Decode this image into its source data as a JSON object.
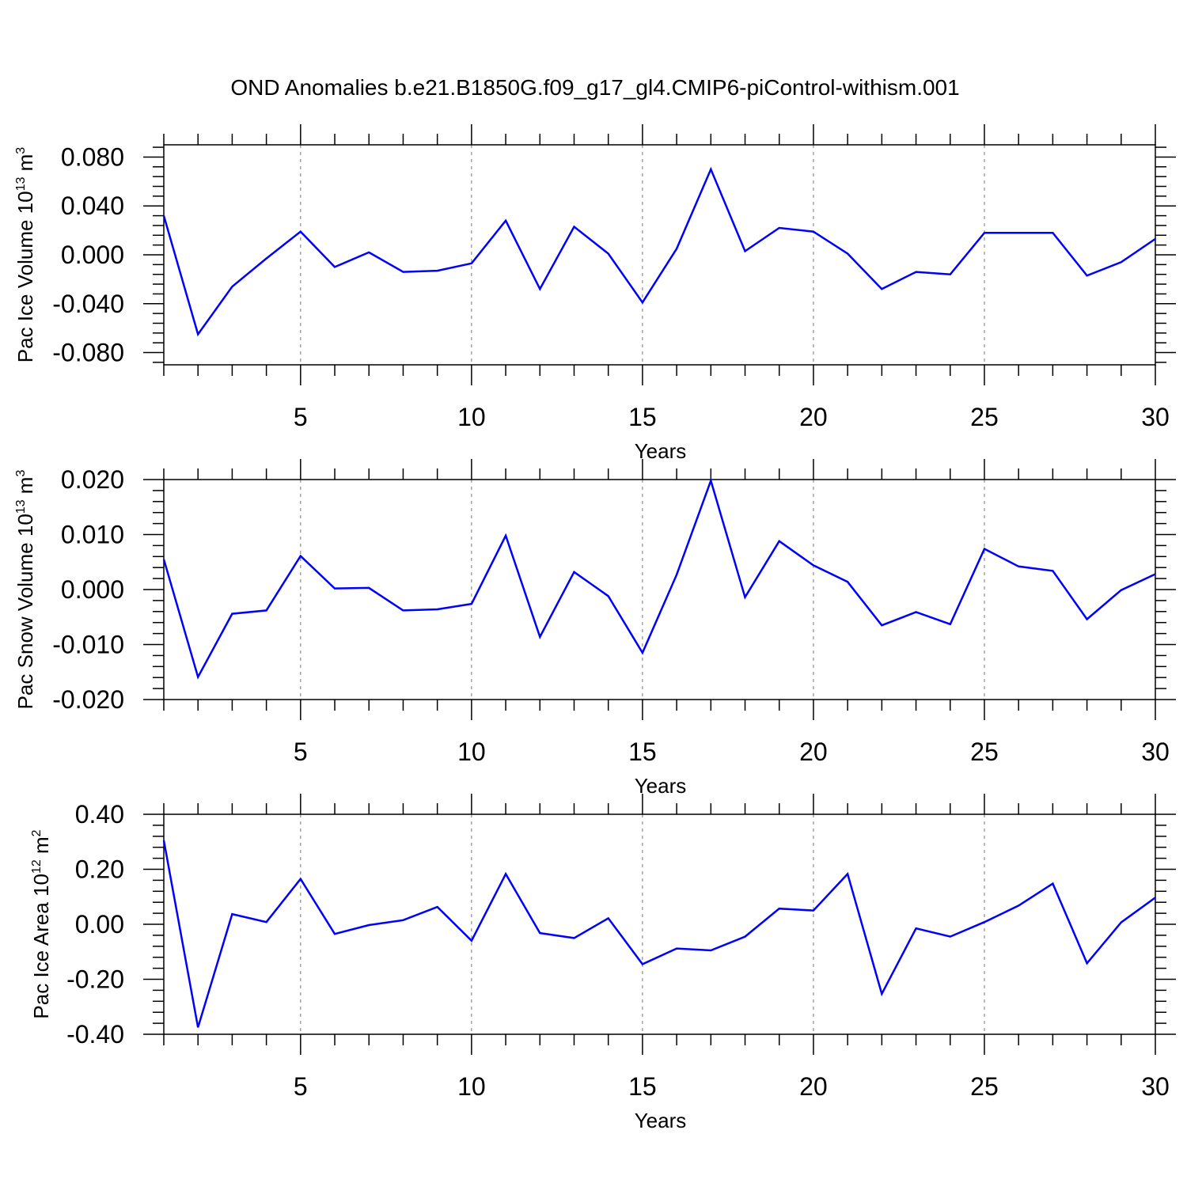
{
  "title": "OND Anomalies b.e21.B1850G.f09_g17_gl4.CMIP6-piControl-withism.001",
  "colors": {
    "line": "#0000ff",
    "axis": "#000000",
    "grid": "#777777"
  },
  "chart_data": [
    {
      "type": "line",
      "ylabel": {
        "main": "Pac Ice Volume 10",
        "exp": "13",
        "unit": " m",
        "unit_exp": "3"
      },
      "xlabel": "Years",
      "xlim": [
        1,
        30
      ],
      "ylim": [
        -0.09,
        0.09
      ],
      "xticks": [
        5,
        10,
        15,
        20,
        25,
        30
      ],
      "yticks": [
        -0.08,
        -0.04,
        0.0,
        0.04,
        0.08
      ],
      "ytick_labels": [
        "-0.080",
        "-0.040",
        "0.000",
        "0.040",
        "0.080"
      ],
      "grid": "dashed vertical lines at labeled x ticks",
      "series": [
        {
          "x": [
            1,
            2,
            3,
            4,
            5,
            6,
            7,
            8,
            9,
            10,
            11,
            12,
            13,
            14,
            15,
            16,
            17,
            18,
            19,
            20,
            21,
            22,
            23,
            24,
            25,
            26,
            27,
            28,
            29,
            30
          ],
          "y": [
            0.032,
            -0.065,
            -0.026,
            -0.003,
            0.019,
            -0.01,
            0.002,
            -0.014,
            -0.013,
            -0.007,
            0.028,
            -0.028,
            0.023,
            0.001,
            -0.039,
            0.005,
            0.07,
            0.003,
            0.022,
            0.019,
            0.001,
            -0.028,
            -0.014,
            -0.016,
            0.018,
            0.018,
            0.018,
            -0.017,
            -0.006,
            0.013
          ]
        }
      ]
    },
    {
      "type": "line",
      "ylabel": {
        "main": "Pac Snow Volume 10",
        "exp": "13",
        "unit": " m",
        "unit_exp": "3"
      },
      "xlabel": "Years",
      "xlim": [
        1,
        30
      ],
      "ylim": [
        -0.02,
        0.02
      ],
      "xticks": [
        5,
        10,
        15,
        20,
        25,
        30
      ],
      "yticks": [
        -0.02,
        -0.01,
        0.0,
        0.01,
        0.02
      ],
      "ytick_labels": [
        "-0.020",
        "-0.010",
        "0.000",
        "0.010",
        "0.020"
      ],
      "grid": "dashed vertical lines at labeled x ticks",
      "series": [
        {
          "x": [
            1,
            2,
            3,
            4,
            5,
            6,
            7,
            8,
            9,
            10,
            11,
            12,
            13,
            14,
            15,
            16,
            17,
            18,
            19,
            20,
            21,
            22,
            23,
            24,
            25,
            26,
            27,
            28,
            29,
            30
          ],
          "y": [
            0.0055,
            -0.0159,
            -0.0044,
            -0.0038,
            0.0061,
            0.0002,
            0.0003,
            -0.0038,
            -0.0036,
            -0.0026,
            0.0098,
            -0.0086,
            0.0032,
            -0.0012,
            -0.0115,
            0.0027,
            0.0198,
            -0.0014,
            0.0088,
            0.0044,
            0.0014,
            -0.0065,
            -0.0041,
            -0.0063,
            0.0074,
            0.0042,
            0.0034,
            -0.0054,
            -0.0001,
            0.0028
          ]
        }
      ]
    },
    {
      "type": "line",
      "ylabel": {
        "main": "Pac Ice Area 10",
        "exp": "12",
        "unit": " m",
        "unit_exp": "2"
      },
      "xlabel": "Years",
      "xlim": [
        1,
        30
      ],
      "ylim": [
        -0.4,
        0.4
      ],
      "xticks": [
        5,
        10,
        15,
        20,
        25,
        30
      ],
      "yticks": [
        -0.4,
        -0.2,
        0.0,
        0.2,
        0.4
      ],
      "ytick_labels": [
        "-0.40",
        "-0.20",
        "0.00",
        "0.20",
        "0.40"
      ],
      "grid": "dashed vertical lines at labeled x ticks",
      "series": [
        {
          "x": [
            1,
            2,
            3,
            4,
            5,
            6,
            7,
            8,
            9,
            10,
            11,
            12,
            13,
            14,
            15,
            16,
            17,
            18,
            19,
            20,
            21,
            22,
            23,
            24,
            25,
            26,
            27,
            28,
            29,
            30
          ],
          "y": [
            0.305,
            -0.375,
            0.037,
            0.008,
            0.165,
            -0.035,
            -0.003,
            0.015,
            0.063,
            -0.06,
            0.183,
            -0.032,
            -0.05,
            0.022,
            -0.145,
            -0.088,
            -0.095,
            -0.045,
            0.057,
            0.05,
            0.183,
            -0.253,
            -0.015,
            -0.045,
            0.008,
            0.068,
            0.148,
            -0.142,
            0.007,
            0.097
          ]
        }
      ]
    }
  ]
}
